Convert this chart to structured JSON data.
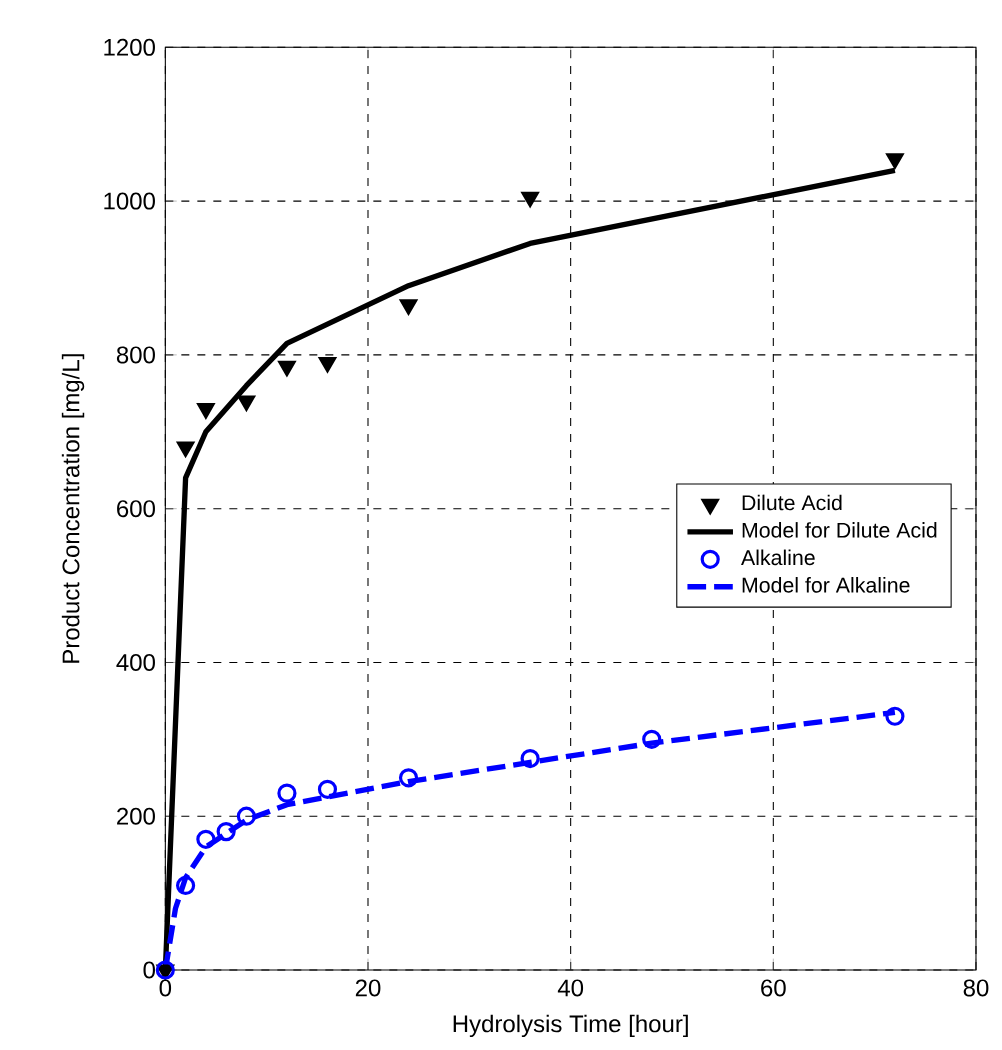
{
  "chart_data": {
    "type": "scatter",
    "xlabel": "Hydrolysis Time [hour]",
    "ylabel": "Product Concentration [mg/L]",
    "xlim": [
      0,
      80
    ],
    "ylim": [
      0,
      1200
    ],
    "xticks": [
      0,
      20,
      40,
      60,
      80
    ],
    "yticks": [
      0,
      200,
      400,
      600,
      800,
      1000,
      1200
    ],
    "grid": true,
    "legend": "right",
    "series": [
      {
        "name": "Dilute Acid",
        "type": "scatter",
        "marker": "triangle",
        "color": "#000000",
        "x": [
          0,
          2,
          4,
          8,
          12,
          16,
          24,
          36,
          72
        ],
        "values": [
          0,
          680,
          730,
          740,
          785,
          790,
          865,
          1005,
          1055
        ]
      },
      {
        "name": "Model for Dilute Acid",
        "type": "line",
        "line_style": "solid",
        "color": "#000000",
        "x": [
          0,
          2,
          4,
          8,
          12,
          24,
          36,
          72
        ],
        "values": [
          0,
          640,
          700,
          760,
          815,
          890,
          945,
          1040
        ]
      },
      {
        "name": "Alkaline",
        "type": "scatter",
        "marker": "circle",
        "color": "#0000ff",
        "x": [
          0,
          2,
          4,
          6,
          8,
          12,
          16,
          24,
          36,
          48,
          72
        ],
        "values": [
          0,
          110,
          170,
          180,
          200,
          230,
          235,
          250,
          275,
          300,
          330
        ]
      },
      {
        "name": "Model for Alkaline",
        "type": "line",
        "line_style": "dashed",
        "color": "#0000ff",
        "x": [
          0,
          1,
          2,
          4,
          8,
          12,
          24,
          36,
          48,
          72
        ],
        "values": [
          0,
          80,
          120,
          160,
          195,
          215,
          245,
          270,
          295,
          335
        ]
      }
    ]
  }
}
